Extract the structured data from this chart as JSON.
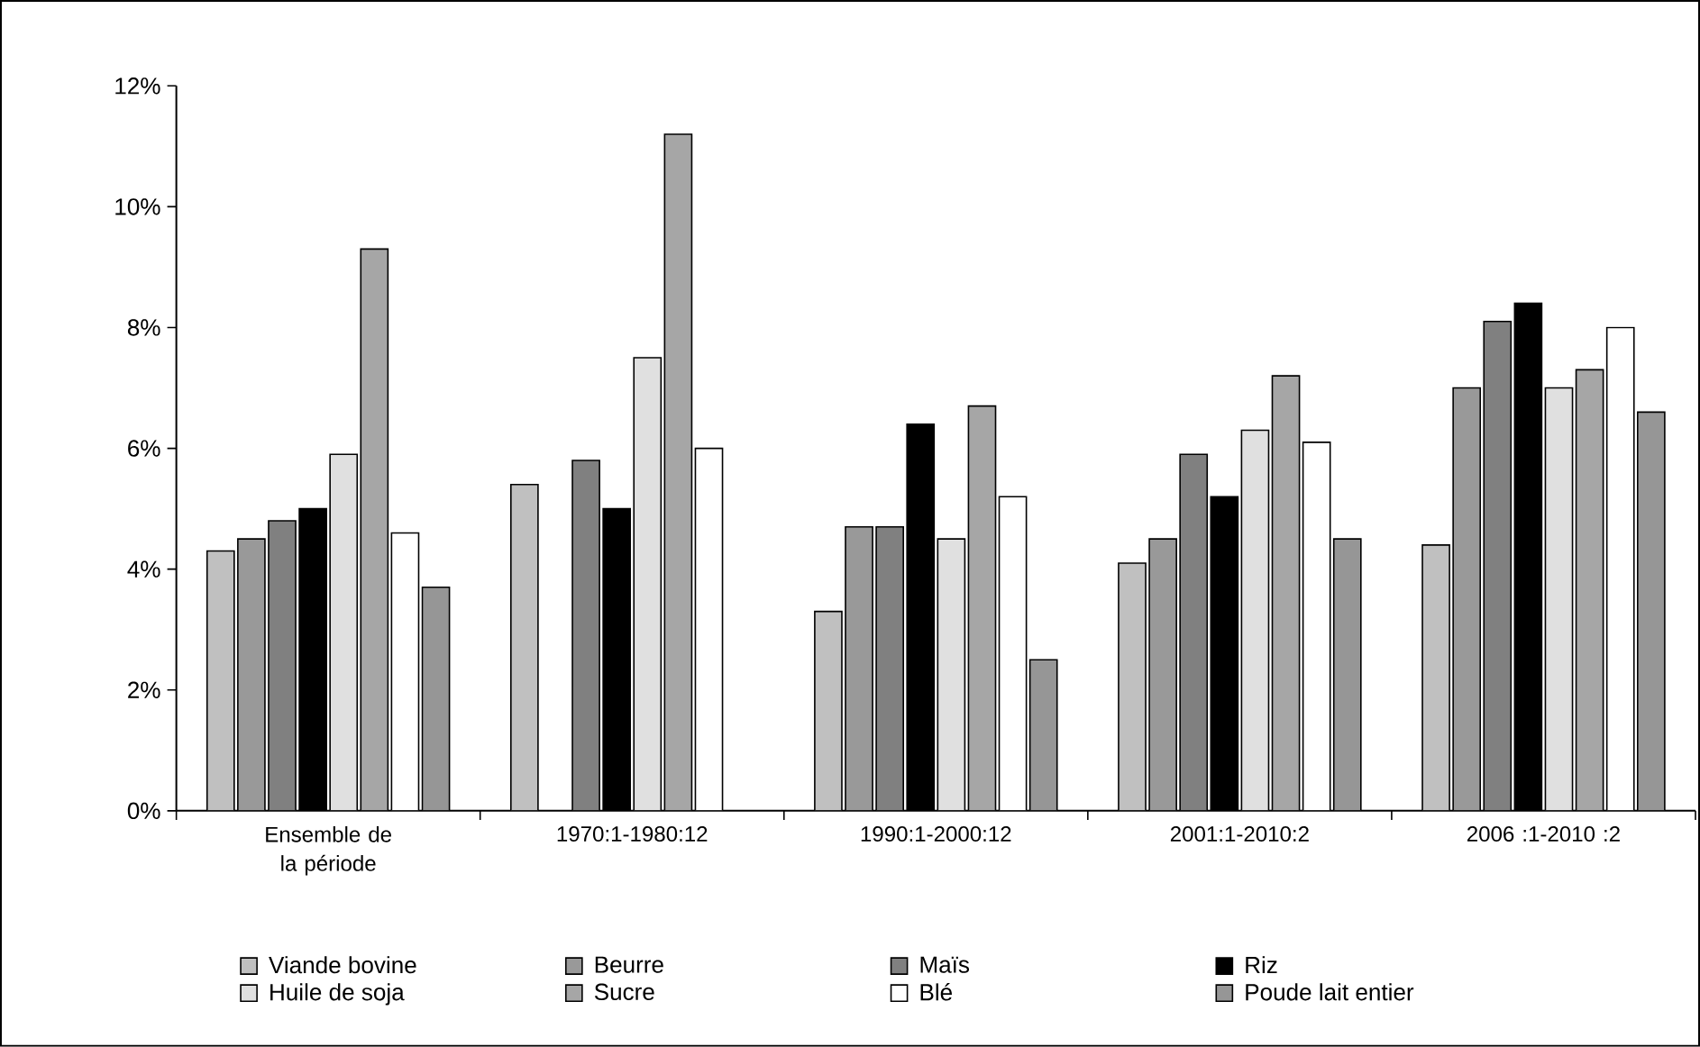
{
  "chart_data": {
    "type": "bar",
    "categories": [
      "Ensemble de la période",
      "1970:1-1980:12",
      "1990:1-2000:12",
      "2001:1-2010:2",
      "2006 :1-2010 :2"
    ],
    "series": [
      {
        "name": "Viande bovine",
        "color": "#c0c0c0",
        "values": [
          4.3,
          5.4,
          3.3,
          4.1,
          4.4
        ]
      },
      {
        "name": "Beurre",
        "color": "#999999",
        "values": [
          4.5,
          null,
          4.7,
          4.5,
          7.0
        ]
      },
      {
        "name": "Maïs",
        "color": "#808080",
        "values": [
          4.8,
          5.8,
          4.7,
          5.9,
          8.1
        ]
      },
      {
        "name": "Riz",
        "color": "#000000",
        "values": [
          5.0,
          5.0,
          6.4,
          5.2,
          8.4
        ]
      },
      {
        "name": "Huile de soja",
        "color": "#e0e0e0",
        "values": [
          5.9,
          7.5,
          4.5,
          6.3,
          7.0
        ]
      },
      {
        "name": "Sucre",
        "color": "#a6a6a6",
        "values": [
          9.3,
          11.2,
          6.7,
          7.2,
          7.3
        ]
      },
      {
        "name": "Blé",
        "color": "#ffffff",
        "values": [
          4.6,
          6.0,
          5.2,
          6.1,
          8.0
        ]
      },
      {
        "name": "Poude lait entier",
        "color": "#969696",
        "values": [
          3.7,
          null,
          2.5,
          4.5,
          6.6
        ]
      }
    ],
    "ylim": [
      0,
      12
    ],
    "yticks": [
      {
        "value": 0,
        "label": "0%"
      },
      {
        "value": 2,
        "label": "2%"
      },
      {
        "value": 4,
        "label": "4%"
      },
      {
        "value": 6,
        "label": "6%"
      },
      {
        "value": 8,
        "label": "8%"
      },
      {
        "value": 10,
        "label": "10%"
      },
      {
        "value": 12,
        "label": "12%"
      }
    ],
    "legend": "bottom"
  }
}
